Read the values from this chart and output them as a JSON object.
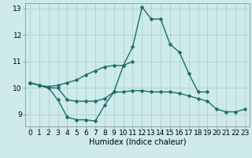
{
  "x": [
    0,
    1,
    2,
    3,
    4,
    5,
    6,
    7,
    8,
    9,
    10,
    11,
    12,
    13,
    14,
    15,
    16,
    17,
    18,
    19,
    20,
    21,
    22,
    23
  ],
  "line_main": [
    10.2,
    10.1,
    10.0,
    9.55,
    8.9,
    8.8,
    8.8,
    8.75,
    9.35,
    9.85,
    10.85,
    11.55,
    13.05,
    12.6,
    12.6,
    11.65,
    11.35,
    10.55,
    9.85,
    9.85,
    null,
    null,
    null,
    null
  ],
  "line_upper": [
    10.2,
    10.1,
    10.05,
    10.1,
    10.2,
    10.3,
    10.5,
    10.65,
    10.8,
    10.85,
    10.85,
    11.0,
    null,
    null,
    null,
    null,
    null,
    null,
    null,
    null,
    null,
    null,
    null,
    null
  ],
  "line_lower": [
    10.2,
    10.1,
    10.0,
    10.0,
    9.55,
    9.5,
    9.5,
    9.5,
    9.6,
    9.85,
    9.85,
    9.9,
    9.9,
    9.85,
    9.85,
    9.85,
    9.8,
    9.7,
    9.6,
    9.5,
    9.2,
    9.1,
    9.1,
    9.2
  ],
  "background_color": "#ceeaea",
  "grid_color": "#aed0d0",
  "line_color": "#1a6e6a",
  "markersize": 2.5,
  "linewidth": 1.0,
  "xlabel": "Humidex (Indice chaleur)",
  "xlim": [
    -0.5,
    23.5
  ],
  "ylim": [
    8.55,
    13.2
  ],
  "yticks": [
    9,
    10,
    11,
    12,
    13
  ],
  "xticks": [
    0,
    1,
    2,
    3,
    4,
    5,
    6,
    7,
    8,
    9,
    10,
    11,
    12,
    13,
    14,
    15,
    16,
    17,
    18,
    19,
    20,
    21,
    22,
    23
  ],
  "fontsize": 6.5
}
